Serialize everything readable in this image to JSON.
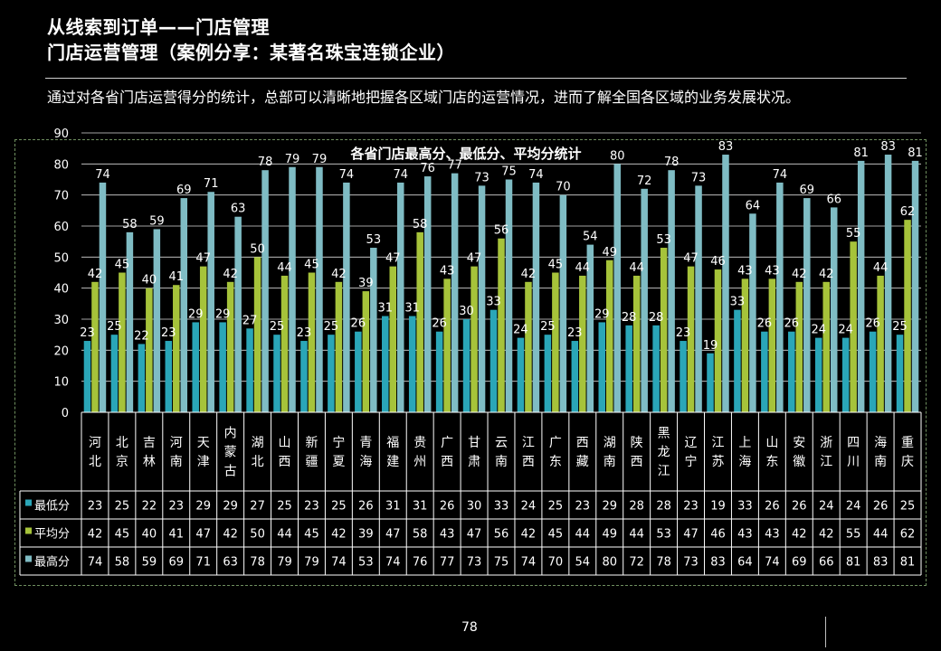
{
  "slide": {
    "title_line1": "从线索到订单——门店管理",
    "title_line2": "门店运营管理（案例分享：某著名珠宝连锁企业）",
    "description": "通过对各省门店运营得分的统计，总部可以清晰地把握各区域门店的运营情况，进而了解全国各区域的业务发展状况。",
    "page_number": "78"
  },
  "chart_data": {
    "type": "bar",
    "title": "各省门店最高分、最低分、平均分统计",
    "ylim": [
      0,
      90
    ],
    "yticks": [
      0,
      10,
      20,
      30,
      40,
      50,
      60,
      70,
      80,
      90
    ],
    "grid": true,
    "legend_placement": "bottom",
    "categories": [
      "河北",
      "北京",
      "吉林",
      "河南",
      "天津",
      "内蒙古",
      "湖北",
      "山西",
      "新疆",
      "宁夏",
      "青海",
      "福建",
      "贵州",
      "广西",
      "甘肃",
      "云南",
      "江西",
      "广东",
      "西藏",
      "湖南",
      "陕西",
      "黑龙江",
      "辽宁",
      "江苏",
      "上海",
      "山东",
      "安徽",
      "浙江",
      "四川",
      "海南",
      "重庆"
    ],
    "series": [
      {
        "name": "最低分",
        "color": "#2aa6b8",
        "values": [
          23,
          25,
          22,
          23,
          29,
          29,
          27,
          25,
          23,
          25,
          26,
          31,
          31,
          26,
          30,
          33,
          24,
          25,
          23,
          29,
          28,
          28,
          23,
          19,
          33,
          26,
          26,
          24,
          24,
          26,
          25
        ]
      },
      {
        "name": "平均分",
        "color": "#a6c33a",
        "values": [
          42,
          45,
          40,
          41,
          47,
          42,
          50,
          44,
          45,
          42,
          39,
          47,
          58,
          43,
          47,
          56,
          42,
          45,
          44,
          49,
          44,
          53,
          47,
          46,
          43,
          43,
          42,
          42,
          55,
          44,
          62
        ]
      },
      {
        "name": "最高分",
        "color": "#7fbcc4",
        "values": [
          74,
          58,
          59,
          69,
          71,
          63,
          78,
          79,
          79,
          74,
          53,
          74,
          76,
          77,
          73,
          75,
          74,
          70,
          54,
          80,
          72,
          78,
          73,
          83,
          64,
          74,
          69,
          66,
          81,
          83,
          81
        ]
      }
    ]
  }
}
